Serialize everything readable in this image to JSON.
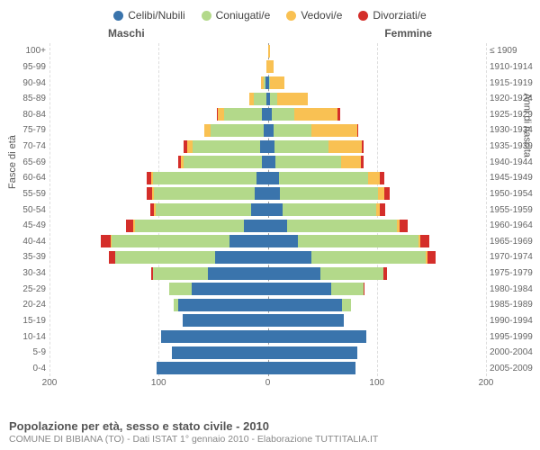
{
  "legend": [
    {
      "label": "Celibi/Nubili",
      "color": "#3a74ac"
    },
    {
      "label": "Coniugati/e",
      "color": "#b3d98a"
    },
    {
      "label": "Vedovi/e",
      "color": "#f9c153"
    },
    {
      "label": "Divorziati/e",
      "color": "#d42e2a"
    }
  ],
  "header": {
    "left": "Maschi",
    "right": "Femmine"
  },
  "axis": {
    "left_title": "Fasce di età",
    "right_title": "Anni di nascita"
  },
  "x": {
    "max": 200,
    "ticks": [
      200,
      100,
      0,
      100,
      200
    ]
  },
  "title": "Popolazione per età, sesso e stato civile - 2010",
  "subtitle": "COMUNE DI BIBIANA (TO) - Dati ISTAT 1° gennaio 2010 - Elaborazione TUTTITALIA.IT",
  "colors": {
    "celibi": "#3a74ac",
    "coniugati": "#b3d98a",
    "vedovi": "#f9c153",
    "divorziati": "#d42e2a"
  },
  "rows": [
    {
      "age": "100+",
      "birth": "≤ 1909",
      "m": [
        0,
        0,
        0,
        0
      ],
      "f": [
        0,
        0,
        2,
        0
      ]
    },
    {
      "age": "95-99",
      "birth": "1910-1914",
      "m": [
        0,
        0,
        1,
        0
      ],
      "f": [
        0,
        0,
        5,
        0
      ]
    },
    {
      "age": "90-94",
      "birth": "1915-1919",
      "m": [
        2,
        2,
        2,
        0
      ],
      "f": [
        1,
        1,
        13,
        0
      ]
    },
    {
      "age": "85-89",
      "birth": "1920-1924",
      "m": [
        1,
        12,
        4,
        0
      ],
      "f": [
        2,
        7,
        28,
        0
      ]
    },
    {
      "age": "80-84",
      "birth": "1925-1929",
      "m": [
        5,
        35,
        6,
        1
      ],
      "f": [
        4,
        20,
        40,
        2
      ]
    },
    {
      "age": "75-79",
      "birth": "1930-1934",
      "m": [
        4,
        48,
        6,
        0
      ],
      "f": [
        5,
        35,
        42,
        1
      ]
    },
    {
      "age": "70-74",
      "birth": "1935-1939",
      "m": [
        7,
        62,
        5,
        3
      ],
      "f": [
        6,
        50,
        30,
        2
      ]
    },
    {
      "age": "65-69",
      "birth": "1940-1944",
      "m": [
        5,
        72,
        3,
        2
      ],
      "f": [
        7,
        60,
        18,
        3
      ]
    },
    {
      "age": "60-64",
      "birth": "1945-1949",
      "m": [
        10,
        95,
        2,
        4
      ],
      "f": [
        10,
        82,
        11,
        4
      ]
    },
    {
      "age": "55-59",
      "birth": "1950-1954",
      "m": [
        12,
        92,
        2,
        5
      ],
      "f": [
        11,
        90,
        6,
        5
      ]
    },
    {
      "age": "50-54",
      "birth": "1955-1959",
      "m": [
        15,
        88,
        1,
        4
      ],
      "f": [
        14,
        85,
        4,
        5
      ]
    },
    {
      "age": "45-49",
      "birth": "1960-1964",
      "m": [
        22,
        100,
        1,
        7
      ],
      "f": [
        18,
        100,
        3,
        7
      ]
    },
    {
      "age": "40-44",
      "birth": "1965-1969",
      "m": [
        35,
        108,
        1,
        9
      ],
      "f": [
        28,
        110,
        2,
        8
      ]
    },
    {
      "age": "35-39",
      "birth": "1970-1974",
      "m": [
        48,
        92,
        0,
        6
      ],
      "f": [
        40,
        105,
        1,
        8
      ]
    },
    {
      "age": "30-34",
      "birth": "1975-1979",
      "m": [
        55,
        50,
        0,
        2
      ],
      "f": [
        48,
        58,
        0,
        3
      ]
    },
    {
      "age": "25-29",
      "birth": "1980-1984",
      "m": [
        70,
        20,
        0,
        0
      ],
      "f": [
        58,
        30,
        0,
        1
      ]
    },
    {
      "age": "20-24",
      "birth": "1985-1989",
      "m": [
        82,
        4,
        0,
        0
      ],
      "f": [
        68,
        8,
        0,
        0
      ]
    },
    {
      "age": "15-19",
      "birth": "1990-1994",
      "m": [
        78,
        0,
        0,
        0
      ],
      "f": [
        70,
        0,
        0,
        0
      ]
    },
    {
      "age": "10-14",
      "birth": "1995-1999",
      "m": [
        98,
        0,
        0,
        0
      ],
      "f": [
        90,
        0,
        0,
        0
      ]
    },
    {
      "age": "5-9",
      "birth": "2000-2004",
      "m": [
        88,
        0,
        0,
        0
      ],
      "f": [
        82,
        0,
        0,
        0
      ]
    },
    {
      "age": "0-4",
      "birth": "2005-2009",
      "m": [
        102,
        0,
        0,
        0
      ],
      "f": [
        80,
        0,
        0,
        0
      ]
    }
  ]
}
